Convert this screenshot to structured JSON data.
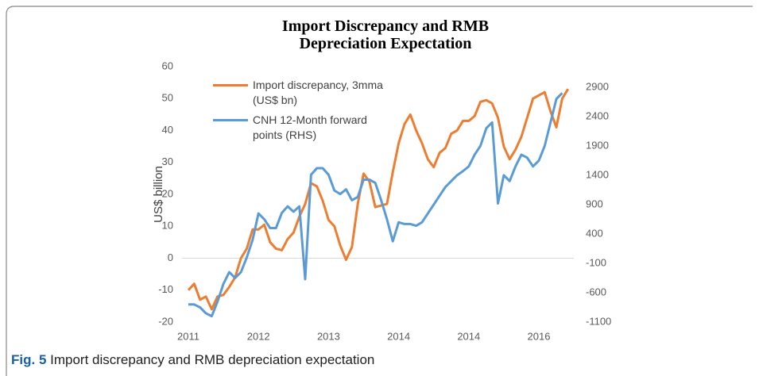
{
  "chart_data": {
    "type": "line",
    "title": "Import Discrepancy and RMB Depreciation Expectation",
    "y_label": "US$ billion",
    "categories": [
      "2011",
      null,
      null,
      null,
      null,
      null,
      null,
      null,
      null,
      null,
      null,
      null,
      "2012",
      null,
      null,
      null,
      null,
      null,
      null,
      null,
      null,
      null,
      null,
      null,
      "2013",
      null,
      null,
      null,
      null,
      null,
      null,
      null,
      null,
      null,
      null,
      null,
      "2014",
      null,
      null,
      null,
      null,
      null,
      null,
      null,
      null,
      null,
      null,
      null,
      "2014",
      null,
      null,
      null,
      null,
      null,
      null,
      null,
      null,
      null,
      null,
      null,
      "2016",
      null,
      null,
      null,
      null,
      null
    ],
    "ylim": [
      -20,
      60
    ],
    "yticks": [
      -20,
      -10,
      0,
      10,
      20,
      30,
      40,
      50,
      60
    ],
    "y2lim": [
      -1100,
      3250
    ],
    "y2ticks": [
      -1100,
      -600,
      -100,
      400,
      900,
      1400,
      1900,
      2400,
      2900
    ],
    "legend": "upper left",
    "series": [
      {
        "name": "Import discrepancy, 3mma (US$ bn)",
        "color": "#ed7d31",
        "values": [
          -10,
          -8,
          -13,
          -12,
          -16,
          -12,
          -11.5,
          -9,
          -6,
          0,
          3,
          9,
          9,
          10.5,
          5,
          3,
          2.5,
          6,
          8,
          13,
          17,
          23.5,
          22.5,
          18,
          12,
          10,
          4,
          -0.5,
          3.5,
          17,
          26.5,
          24,
          16,
          16.5,
          17,
          27,
          36,
          42,
          45,
          40,
          36,
          31,
          28.5,
          33,
          34.5,
          39,
          40,
          43,
          43,
          44.5,
          49,
          49.5,
          48.5,
          44,
          35,
          31,
          34,
          38,
          44,
          50,
          51,
          52,
          46,
          41,
          50,
          53
        ]
      },
      {
        "name": "CNH 12-Month forward points (RHS)",
        "color": "#5b9bd5",
        "axis": "y2",
        "values": [
          -800,
          -800,
          -850,
          -950,
          -1000,
          -750,
          -450,
          -250,
          -350,
          -250,
          0,
          300,
          750,
          650,
          500,
          500,
          760,
          870,
          780,
          870,
          -370,
          1410,
          1520,
          1520,
          1410,
          1140,
          1080,
          1160,
          975,
          1030,
          1325,
          1325,
          1270,
          975,
          650,
          275,
          600,
          570,
          570,
          540,
          600,
          750,
          900,
          1050,
          1200,
          1300,
          1400,
          1470,
          1550,
          1750,
          1900,
          2200,
          2300,
          920,
          1400,
          1300,
          1550,
          1750,
          1700,
          1550,
          1650,
          1900,
          2300,
          2700,
          2800,
          null
        ]
      }
    ]
  },
  "caption": {
    "label": "Fig. 5",
    "text": "Import discrepancy and RMB depreciation expectation"
  }
}
